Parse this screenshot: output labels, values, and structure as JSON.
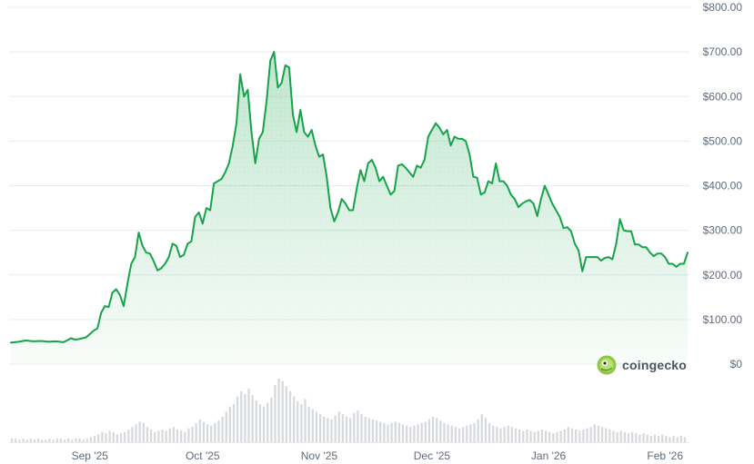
{
  "chart_data": {
    "type": "area",
    "colors": {
      "line": "#16a34a",
      "fill_top": "#16a34a",
      "volume": "#d6d9dd",
      "grid": "#e9ecef",
      "tick": "#5f6b7a"
    },
    "y_axis": {
      "position": "right",
      "ylim": [
        0,
        800
      ],
      "ticks": [
        0,
        100,
        200,
        300,
        400,
        500,
        600,
        700,
        800
      ],
      "tick_labels": [
        "$0",
        "$100.00",
        "$200.00",
        "$300.00",
        "$400.00",
        "$500.00",
        "$600.00",
        "$700.00",
        "$800.00"
      ]
    },
    "x_axis": {
      "range_day": [
        0,
        180
      ],
      "ticks": [
        {
          "day": 21,
          "label": "Sep '25"
        },
        {
          "day": 51,
          "label": "Oct '25"
        },
        {
          "day": 82,
          "label": "Nov '25"
        },
        {
          "day": 112,
          "label": "Dec '25"
        },
        {
          "day": 143,
          "label": "Jan '26"
        },
        {
          "day": 174,
          "label": "Feb '26"
        }
      ]
    },
    "grid": true,
    "series": [
      {
        "type": "line",
        "points": [
          [
            0,
            48
          ],
          [
            2,
            50
          ],
          [
            4,
            53
          ],
          [
            6,
            51
          ],
          [
            8,
            52
          ],
          [
            10,
            50
          ],
          [
            12,
            51
          ],
          [
            14,
            49
          ],
          [
            16,
            58
          ],
          [
            17,
            55
          ],
          [
            18,
            56
          ],
          [
            20,
            60
          ],
          [
            22,
            75
          ],
          [
            23,
            80
          ],
          [
            24,
            115
          ],
          [
            25,
            130
          ],
          [
            26,
            128
          ],
          [
            27,
            160
          ],
          [
            28,
            168
          ],
          [
            29,
            155
          ],
          [
            30,
            130
          ],
          [
            31,
            180
          ],
          [
            32,
            225
          ],
          [
            33,
            240
          ],
          [
            34,
            295
          ],
          [
            35,
            265
          ],
          [
            36,
            250
          ],
          [
            37,
            248
          ],
          [
            38,
            230
          ],
          [
            39,
            210
          ],
          [
            40,
            215
          ],
          [
            41,
            225
          ],
          [
            42,
            240
          ],
          [
            43,
            270
          ],
          [
            44,
            265
          ],
          [
            45,
            240
          ],
          [
            46,
            245
          ],
          [
            47,
            270
          ],
          [
            48,
            275
          ],
          [
            49,
            330
          ],
          [
            50,
            340
          ],
          [
            51,
            315
          ],
          [
            52,
            350
          ],
          [
            53,
            345
          ],
          [
            54,
            405
          ],
          [
            55,
            410
          ],
          [
            56,
            415
          ],
          [
            57,
            430
          ],
          [
            58,
            450
          ],
          [
            59,
            490
          ],
          [
            60,
            540
          ],
          [
            61,
            650
          ],
          [
            62,
            600
          ],
          [
            63,
            615
          ],
          [
            64,
            520
          ],
          [
            65,
            450
          ],
          [
            66,
            505
          ],
          [
            67,
            520
          ],
          [
            68,
            590
          ],
          [
            69,
            680
          ],
          [
            70,
            700
          ],
          [
            71,
            620
          ],
          [
            72,
            630
          ],
          [
            73,
            670
          ],
          [
            74,
            665
          ],
          [
            75,
            560
          ],
          [
            76,
            520
          ],
          [
            77,
            570
          ],
          [
            78,
            520
          ],
          [
            79,
            510
          ],
          [
            80,
            525
          ],
          [
            81,
            490
          ],
          [
            82,
            465
          ],
          [
            83,
            470
          ],
          [
            84,
            420
          ],
          [
            85,
            350
          ],
          [
            86,
            320
          ],
          [
            87,
            340
          ],
          [
            88,
            370
          ],
          [
            89,
            360
          ],
          [
            90,
            345
          ],
          [
            91,
            345
          ],
          [
            92,
            395
          ],
          [
            93,
            435
          ],
          [
            94,
            410
          ],
          [
            95,
            450
          ],
          [
            96,
            458
          ],
          [
            97,
            440
          ],
          [
            98,
            410
          ],
          [
            99,
            420
          ],
          [
            100,
            400
          ],
          [
            101,
            380
          ],
          [
            102,
            388
          ],
          [
            103,
            445
          ],
          [
            104,
            448
          ],
          [
            105,
            440
          ],
          [
            106,
            430
          ],
          [
            107,
            420
          ],
          [
            108,
            445
          ],
          [
            109,
            440
          ],
          [
            110,
            458
          ],
          [
            111,
            510
          ],
          [
            112,
            525
          ],
          [
            113,
            540
          ],
          [
            114,
            530
          ],
          [
            115,
            515
          ],
          [
            116,
            525
          ],
          [
            117,
            490
          ],
          [
            118,
            510
          ],
          [
            119,
            505
          ],
          [
            120,
            505
          ],
          [
            121,
            500
          ],
          [
            122,
            470
          ],
          [
            123,
            420
          ],
          [
            124,
            418
          ],
          [
            125,
            380
          ],
          [
            126,
            385
          ],
          [
            127,
            410
          ],
          [
            128,
            405
          ],
          [
            129,
            450
          ],
          [
            130,
            410
          ],
          [
            131,
            410
          ],
          [
            132,
            400
          ],
          [
            133,
            380
          ],
          [
            134,
            370
          ],
          [
            135,
            352
          ],
          [
            136,
            360
          ],
          [
            137,
            365
          ],
          [
            138,
            368
          ],
          [
            139,
            360
          ],
          [
            140,
            332
          ],
          [
            141,
            370
          ],
          [
            142,
            400
          ],
          [
            143,
            380
          ],
          [
            144,
            360
          ],
          [
            145,
            345
          ],
          [
            146,
            330
          ],
          [
            147,
            305
          ],
          [
            148,
            307
          ],
          [
            149,
            298
          ],
          [
            150,
            270
          ],
          [
            151,
            255
          ],
          [
            152,
            208
          ],
          [
            153,
            240
          ],
          [
            154,
            240
          ],
          [
            155,
            240
          ],
          [
            156,
            240
          ],
          [
            157,
            232
          ],
          [
            158,
            238
          ],
          [
            159,
            240
          ],
          [
            160,
            235
          ],
          [
            161,
            270
          ],
          [
            162,
            325
          ],
          [
            163,
            300
          ],
          [
            164,
            298
          ],
          [
            165,
            298
          ],
          [
            166,
            268
          ],
          [
            167,
            268
          ],
          [
            168,
            262
          ],
          [
            169,
            262
          ],
          [
            170,
            250
          ],
          [
            171,
            242
          ],
          [
            172,
            248
          ],
          [
            173,
            248
          ],
          [
            174,
            240
          ],
          [
            175,
            225
          ],
          [
            176,
            225
          ],
          [
            177,
            218
          ],
          [
            178,
            225
          ],
          [
            179,
            225
          ],
          [
            180,
            250
          ]
        ]
      },
      {
        "type": "bar",
        "name": "volume",
        "values": [
          3,
          3,
          2,
          3,
          2,
          3,
          2,
          3,
          2,
          2,
          3,
          2,
          3,
          3,
          2,
          3,
          2,
          3,
          3,
          2,
          3,
          4,
          5,
          6,
          8,
          7,
          9,
          8,
          6,
          7,
          8,
          10,
          12,
          14,
          16,
          15,
          12,
          10,
          8,
          9,
          10,
          9,
          11,
          12,
          10,
          9,
          8,
          11,
          12,
          15,
          18,
          16,
          14,
          13,
          15,
          17,
          20,
          24,
          28,
          30,
          36,
          40,
          38,
          42,
          37,
          33,
          30,
          28,
          31,
          35,
          45,
          50,
          48,
          44,
          40,
          36,
          32,
          30,
          34,
          28,
          26,
          24,
          22,
          20,
          19,
          18,
          21,
          24,
          22,
          20,
          19,
          23,
          25,
          22,
          20,
          19,
          18,
          17,
          16,
          15,
          14,
          15,
          16,
          15,
          14,
          13,
          12,
          13,
          14,
          15,
          16,
          18,
          20,
          19,
          17,
          15,
          14,
          13,
          12,
          11,
          12,
          13,
          14,
          15,
          18,
          22,
          19,
          15,
          13,
          12,
          11,
          12,
          13,
          12,
          11,
          10,
          9,
          10,
          9,
          8,
          9,
          10,
          9,
          8,
          7,
          8,
          9,
          10,
          12,
          11,
          10,
          9,
          10,
          11,
          12,
          14,
          13,
          12,
          11,
          10,
          9,
          8,
          9,
          8,
          7,
          8,
          7,
          6,
          7,
          6,
          5,
          6,
          5,
          6,
          5,
          4,
          5,
          4,
          5,
          4
        ]
      }
    ]
  },
  "brand": {
    "name": "coingecko"
  }
}
